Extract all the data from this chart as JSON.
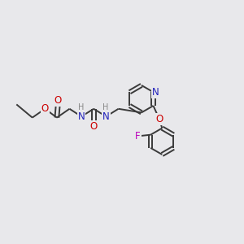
{
  "bg_color": "#e8e8eb",
  "bond_color": "#3a3a3a",
  "n_color": "#2222bb",
  "o_color": "#cc0000",
  "f_color": "#bb00bb",
  "h_color": "#888888",
  "font_size": 8.5,
  "small_font": 7.0,
  "lw": 1.4,
  "xlim": [
    0,
    11
  ],
  "ylim": [
    0,
    10
  ]
}
